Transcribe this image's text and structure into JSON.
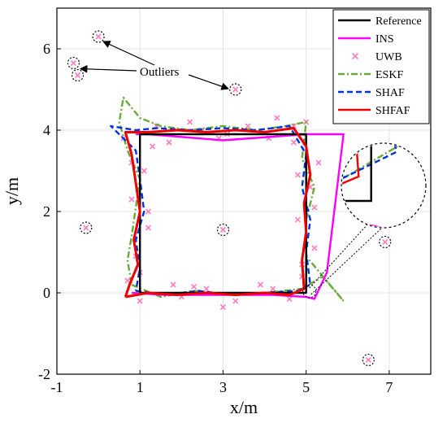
{
  "chart_data": {
    "type": "line",
    "xlabel": "x/m",
    "ylabel": "y/m",
    "xlim": [
      -1,
      8
    ],
    "ylim": [
      -2,
      7
    ],
    "xticks": [
      -1,
      1,
      3,
      5,
      7
    ],
    "yticks": [
      -2,
      0,
      2,
      4,
      6
    ],
    "grid": true,
    "legend_position": "top-right",
    "annotation": {
      "text": "Outliers",
      "targets": [
        [
          0.0,
          6.3
        ],
        [
          -0.55,
          5.55
        ],
        [
          3.3,
          5.0
        ]
      ]
    },
    "series": [
      {
        "name": "Reference",
        "color": "#000000",
        "dash": "solid",
        "x": [
          1.0,
          5.0,
          5.0,
          1.0,
          1.0
        ],
        "y": [
          0.0,
          0.0,
          3.9,
          3.9,
          0.0
        ]
      },
      {
        "name": "INS",
        "color": "#ff00ff",
        "dash": "solid",
        "x": [
          0.8,
          1.6,
          3.0,
          4.2,
          5.0,
          5.2,
          5.5,
          5.9,
          5.0,
          3.0,
          1.2,
          0.9
        ],
        "y": [
          0.0,
          -0.05,
          -0.05,
          -0.05,
          -0.1,
          -0.15,
          0.5,
          3.9,
          3.9,
          3.75,
          3.9,
          3.9
        ]
      },
      {
        "name": "UWB",
        "color": "#ff7fc1",
        "marker": "x",
        "x": [
          0.7,
          0.9,
          1.2,
          0.8,
          1.1,
          1.3,
          0.6,
          1.0,
          1.2,
          0.8,
          1.4,
          1.0,
          2.0,
          2.6,
          3.3,
          3.9,
          4.6,
          2.3,
          3.0,
          4.2,
          1.8,
          4.9,
          5.2,
          4.8,
          5.1,
          5.3,
          4.7,
          5.0,
          4.9,
          5.2,
          4.8,
          2.2,
          2.9,
          3.6,
          4.3,
          1.7,
          2.5,
          3.1,
          4.1,
          4.7
        ],
        "y": [
          0.3,
          0.9,
          1.6,
          2.3,
          3.0,
          3.6,
          3.8,
          0.5,
          2.0,
          3.2,
          4.1,
          -0.2,
          -0.1,
          0.1,
          -0.2,
          0.2,
          -0.15,
          0.15,
          -0.35,
          0.1,
          0.2,
          0.4,
          1.1,
          1.8,
          2.6,
          3.2,
          3.7,
          4.2,
          0.7,
          2.1,
          2.9,
          4.2,
          3.8,
          4.1,
          4.3,
          3.7,
          4.0,
          3.9,
          3.8,
          4.1
        ]
      },
      {
        "name": "ESKF",
        "color": "#6aaa3a",
        "dash": "dashdot",
        "x": [
          0.8,
          1.5,
          2.3,
          3.1,
          4.0,
          4.9,
          5.4,
          5.9,
          5.0,
          5.0,
          5.2,
          4.9,
          5.0,
          4.5,
          3.8,
          3.0,
          2.2,
          1.5,
          1.0,
          0.6,
          0.5,
          0.7,
          1.0,
          0.9,
          0.8,
          0.7,
          0.8
        ],
        "y": [
          0.2,
          -0.1,
          0.05,
          -0.05,
          0.0,
          0.1,
          0.4,
          -0.2,
          0.9,
          1.8,
          2.6,
          3.3,
          4.2,
          4.1,
          4.0,
          4.1,
          4.0,
          4.1,
          4.3,
          4.8,
          4.2,
          3.5,
          2.8,
          2.1,
          1.4,
          0.8,
          0.2
        ]
      },
      {
        "name": "SHAF",
        "color": "#0033dd",
        "dash": "dashed",
        "x": [
          0.9,
          1.6,
          2.4,
          3.2,
          4.0,
          4.8,
          5.1,
          5.0,
          5.1,
          4.9,
          5.0,
          4.6,
          3.8,
          3.0,
          2.2,
          1.4,
          0.9,
          0.3,
          0.9,
          1.0,
          1.1,
          0.9,
          1.0,
          0.9
        ],
        "y": [
          0.05,
          -0.05,
          0.05,
          -0.05,
          0.0,
          0.05,
          0.2,
          1.0,
          1.8,
          2.6,
          3.4,
          4.1,
          4.0,
          4.05,
          4.0,
          4.05,
          4.0,
          4.1,
          3.5,
          2.8,
          2.0,
          1.3,
          0.6,
          0.05
        ]
      },
      {
        "name": "SHFAF",
        "color": "#ee0000",
        "dash": "solid",
        "x": [
          0.65,
          1.2,
          1.9,
          2.6,
          3.3,
          4.0,
          4.6,
          4.95,
          4.9,
          5.0,
          4.95,
          5.1,
          5.0,
          4.7,
          4.0,
          3.3,
          2.6,
          1.9,
          1.2,
          0.65,
          0.8,
          0.9,
          1.0,
          0.85,
          0.95,
          0.75,
          0.65
        ],
        "y": [
          -0.1,
          0.0,
          -0.05,
          0.0,
          -0.05,
          0.0,
          -0.05,
          0.1,
          0.8,
          1.5,
          2.2,
          2.9,
          3.6,
          4.05,
          3.95,
          4.0,
          3.95,
          4.0,
          3.95,
          3.95,
          3.4,
          2.7,
          2.0,
          1.3,
          0.7,
          0.2,
          -0.1
        ]
      },
      {
        "name": "Outliers",
        "color": "#ff7fc1",
        "marker": "x-circled",
        "x": [
          0.0,
          -0.6,
          -0.5,
          3.3,
          -0.3,
          3.0,
          6.9,
          6.5
        ],
        "y": [
          6.3,
          5.65,
          5.35,
          5.0,
          1.6,
          1.55,
          1.25,
          -1.65
        ]
      }
    ]
  }
}
